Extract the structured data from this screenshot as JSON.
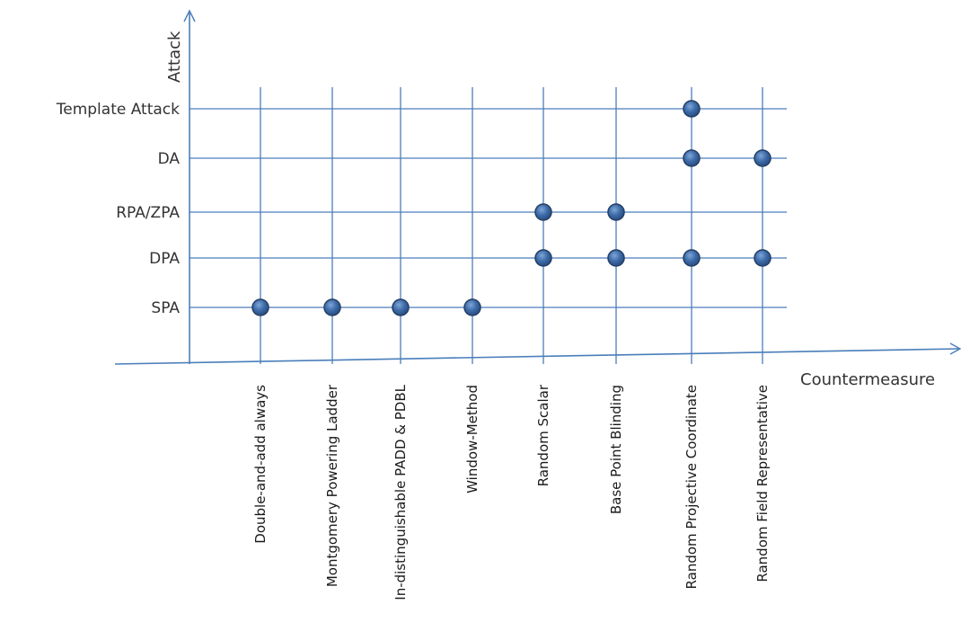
{
  "axes": {
    "x_title": "Countermeasure",
    "y_title": "Attack"
  },
  "rows": [
    "Template Attack",
    "DA",
    "RPA/ZPA",
    "DPA",
    "SPA"
  ],
  "columns": [
    "Double-and-add always",
    "Montgomery Powering Ladder",
    "In-distinguishable PADD & PDBL",
    "Window-Method",
    "Random Scalar",
    "Base Point Blinding",
    "Random Projective Coordinate",
    "Random Field Representative"
  ],
  "marks": [
    {
      "row": "Template Attack",
      "column": "Random Projective Coordinate"
    },
    {
      "row": "DA",
      "column": "Random Projective Coordinate"
    },
    {
      "row": "DA",
      "column": "Random Field Representative"
    },
    {
      "row": "RPA/ZPA",
      "column": "Random Scalar"
    },
    {
      "row": "RPA/ZPA",
      "column": "Base Point Blinding"
    },
    {
      "row": "DPA",
      "column": "Random Scalar"
    },
    {
      "row": "DPA",
      "column": "Base Point Blinding"
    },
    {
      "row": "DPA",
      "column": "Random Projective Coordinate"
    },
    {
      "row": "DPA",
      "column": "Random Field Representative"
    },
    {
      "row": "SPA",
      "column": "Double-and-add always"
    },
    {
      "row": "SPA",
      "column": "Montgomery Powering Ladder"
    },
    {
      "row": "SPA",
      "column": "In-distinguishable PADD & PDBL"
    },
    {
      "row": "SPA",
      "column": "Window-Method"
    }
  ],
  "colors": {
    "grid": "#4a7ebb",
    "marker_fill": "#3d6ba8",
    "marker_stroke": "#243f66"
  }
}
